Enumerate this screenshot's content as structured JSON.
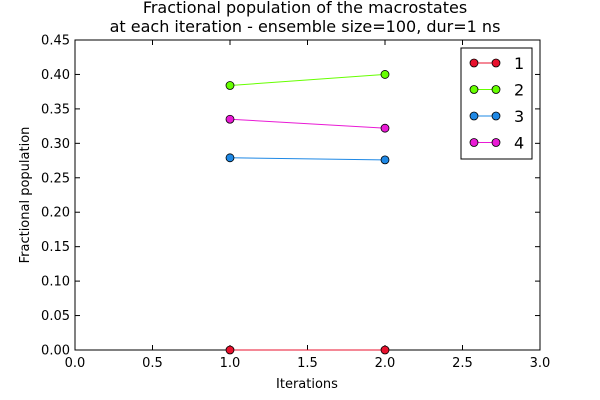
{
  "chart_data": {
    "type": "line",
    "title": "Fractional population of the macrostates",
    "subtitle": "at each iteration - ensemble size=100, dur=1 ns",
    "xlabel": "Iterations",
    "ylabel": "Fractional population",
    "xlim": [
      0.0,
      3.0
    ],
    "ylim": [
      0.0,
      0.45
    ],
    "x_ticks": [
      "0.0",
      "0.5",
      "1.0",
      "1.5",
      "2.0",
      "2.5",
      "3.0"
    ],
    "y_ticks": [
      "0.00",
      "0.05",
      "0.10",
      "0.15",
      "0.20",
      "0.25",
      "0.30",
      "0.35",
      "0.40",
      "0.45"
    ],
    "grid": false,
    "legend_position": "top-right",
    "x": [
      1.0,
      2.0
    ],
    "series": [
      {
        "name": "1",
        "color": "#e8112d",
        "values": [
          0.0,
          0.0
        ]
      },
      {
        "name": "2",
        "color": "#66ff00",
        "values": [
          0.384,
          0.4
        ]
      },
      {
        "name": "3",
        "color": "#1e88e5",
        "values": [
          0.279,
          0.276
        ]
      },
      {
        "name": "4",
        "color": "#e91ad5",
        "values": [
          0.335,
          0.322
        ]
      }
    ]
  }
}
